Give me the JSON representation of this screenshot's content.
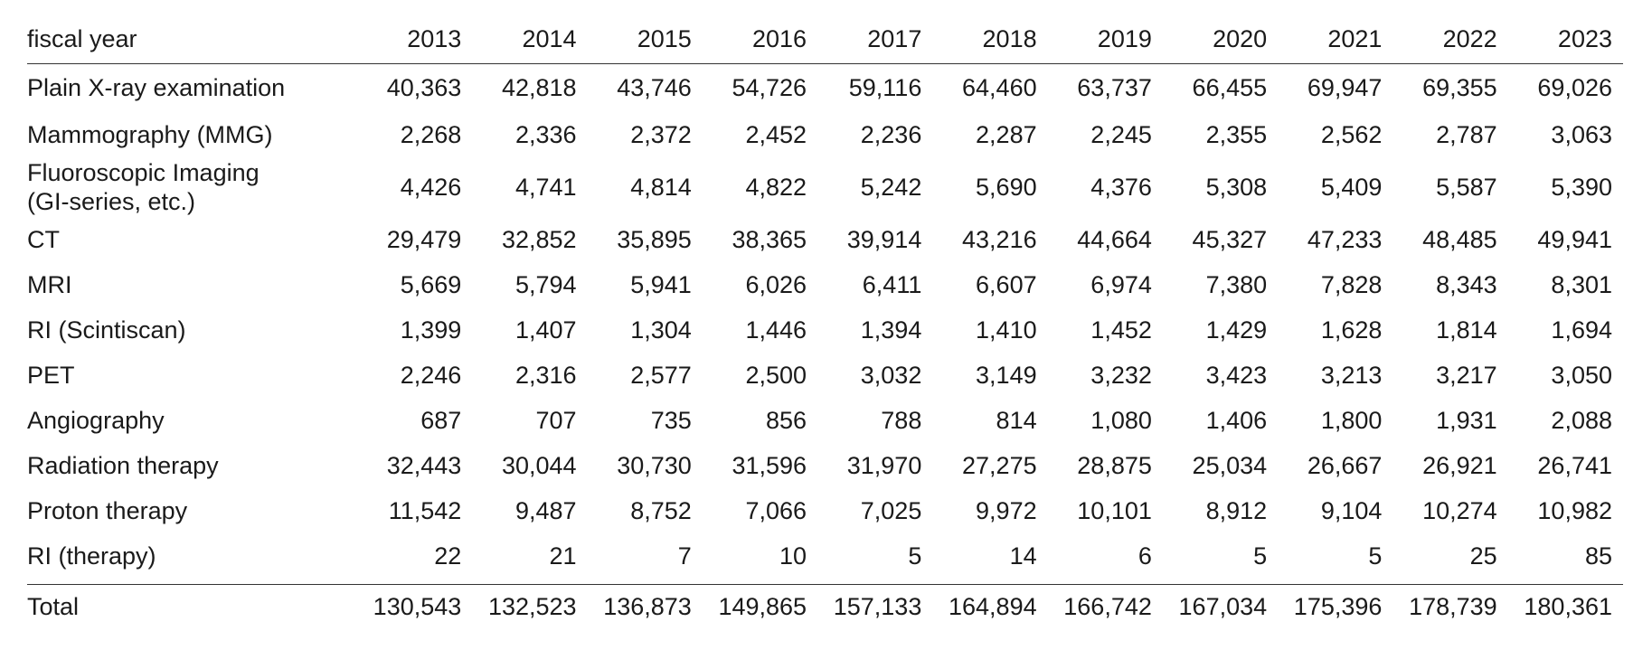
{
  "table": {
    "header_label": "fiscal year",
    "years": [
      "2013",
      "2014",
      "2015",
      "2016",
      "2017",
      "2018",
      "2019",
      "2020",
      "2021",
      "2022",
      "2023"
    ],
    "rows": [
      {
        "label": "Plain X-ray examination",
        "values": [
          "40,363",
          "42,818",
          "43,746",
          "54,726",
          "59,116",
          "64,460",
          "63,737",
          "66,455",
          "69,947",
          "69,355",
          "69,026"
        ]
      },
      {
        "label": "Mammography (MMG)",
        "values": [
          "2,268",
          "2,336",
          "2,372",
          "2,452",
          "2,236",
          "2,287",
          "2,245",
          "2,355",
          "2,562",
          "2,787",
          "3,063"
        ]
      },
      {
        "label": "Fluoroscopic Imaging\n(GI-series, etc.)",
        "values": [
          "4,426",
          "4,741",
          "4,814",
          "4,822",
          "5,242",
          "5,690",
          "4,376",
          "5,308",
          "5,409",
          "5,587",
          "5,390"
        ]
      },
      {
        "label": "CT",
        "values": [
          "29,479",
          "32,852",
          "35,895",
          "38,365",
          "39,914",
          "43,216",
          "44,664",
          "45,327",
          "47,233",
          "48,485",
          "49,941"
        ]
      },
      {
        "label": "MRI",
        "values": [
          "5,669",
          "5,794",
          "5,941",
          "6,026",
          "6,411",
          "6,607",
          "6,974",
          "7,380",
          "7,828",
          "8,343",
          "8,301"
        ]
      },
      {
        "label": "RI (Scintiscan)",
        "values": [
          "1,399",
          "1,407",
          "1,304",
          "1,446",
          "1,394",
          "1,410",
          "1,452",
          "1,429",
          "1,628",
          "1,814",
          "1,694"
        ]
      },
      {
        "label": "PET",
        "values": [
          "2,246",
          "2,316",
          "2,577",
          "2,500",
          "3,032",
          "3,149",
          "3,232",
          "3,423",
          "3,213",
          "3,217",
          "3,050"
        ]
      },
      {
        "label": "Angiography",
        "values": [
          "687",
          "707",
          "735",
          "856",
          "788",
          "814",
          "1,080",
          "1,406",
          "1,800",
          "1,931",
          "2,088"
        ]
      },
      {
        "label": "Radiation therapy",
        "values": [
          "32,443",
          "30,044",
          "30,730",
          "31,596",
          "31,970",
          "27,275",
          "28,875",
          "25,034",
          "26,667",
          "26,921",
          "26,741"
        ]
      },
      {
        "label": "Proton therapy",
        "values": [
          "11,542",
          "9,487",
          "8,752",
          "7,066",
          "7,025",
          "9,972",
          "10,101",
          "8,912",
          "9,104",
          "10,274",
          "10,982"
        ]
      },
      {
        "label": "RI (therapy)",
        "values": [
          "22",
          "21",
          "7",
          "10",
          "5",
          "14",
          "6",
          "5",
          "5",
          "25",
          "85"
        ]
      }
    ],
    "total": {
      "label": "Total",
      "values": [
        "130,543",
        "132,523",
        "136,873",
        "149,865",
        "157,133",
        "164,894",
        "166,742",
        "167,034",
        "175,396",
        "178,739",
        "180,361"
      ]
    }
  }
}
